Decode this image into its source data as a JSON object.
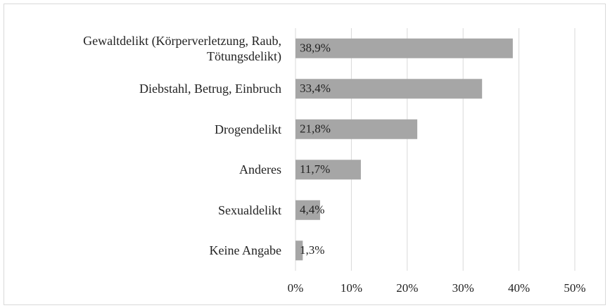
{
  "chart_data": {
    "type": "bar",
    "orientation": "horizontal",
    "categories": [
      "Gewaltdelikt (Körperverletzung, Raub,\nTötungsdelikt)",
      "Diebstahl, Betrug, Einbruch",
      "Drogendelikt",
      "Anderes",
      "Sexualdelikt",
      "Keine Angabe"
    ],
    "values": [
      38.9,
      33.4,
      21.8,
      11.7,
      4.4,
      1.3
    ],
    "value_labels": [
      "38,9%",
      "33,4%",
      "21,8%",
      "11,7%",
      "4,4%",
      "1,3%"
    ],
    "color": "#a6a6a6",
    "xlim": [
      0,
      50
    ],
    "xticks": [
      {
        "value": 0,
        "label": "0%"
      },
      {
        "value": 10,
        "label": "10%"
      },
      {
        "value": 20,
        "label": "20%"
      },
      {
        "value": 30,
        "label": "30%"
      },
      {
        "value": 40,
        "label": "40%"
      },
      {
        "value": 50,
        "label": "50%"
      }
    ],
    "grid": true
  }
}
